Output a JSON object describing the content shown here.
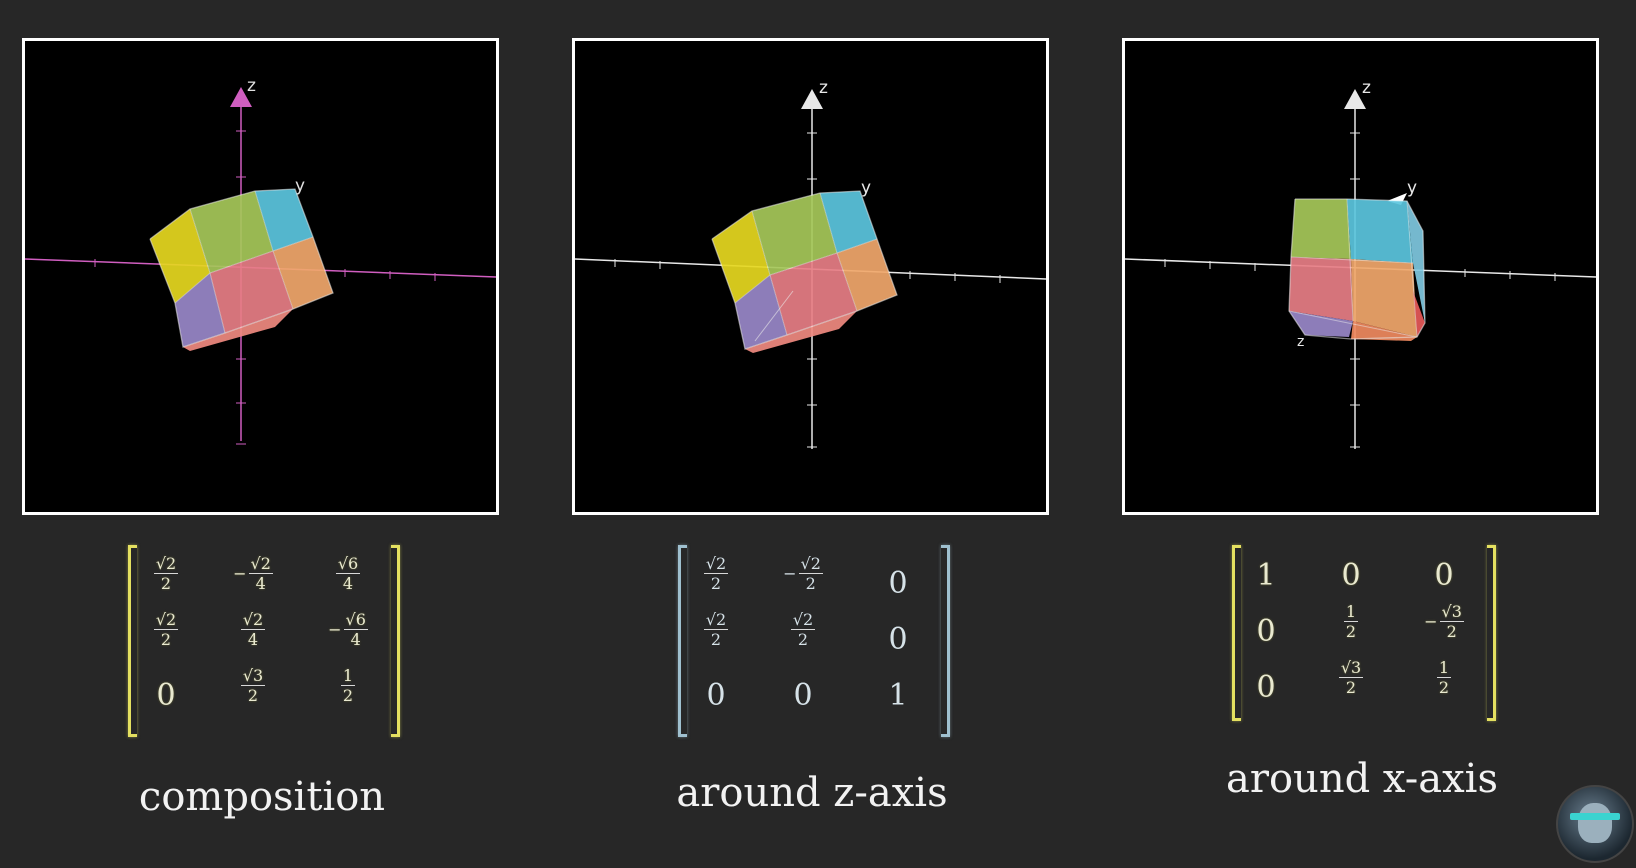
{
  "panels": [
    {
      "axis_color": "#d05ec0",
      "labels": {
        "z": "z",
        "y": "y"
      },
      "matrix": {
        "bracket_style": "yellow",
        "rows": [
          [
            {
              "sign": "",
              "num": "√2",
              "den": "2"
            },
            {
              "sign": "−",
              "num": "√2",
              "den": "4"
            },
            {
              "sign": "",
              "num": "√6",
              "den": "4"
            }
          ],
          [
            {
              "sign": "",
              "num": "√2",
              "den": "2"
            },
            {
              "sign": "",
              "num": "√2",
              "den": "4"
            },
            {
              "sign": "−",
              "num": "√6",
              "den": "4"
            }
          ],
          [
            {
              "value": "0"
            },
            {
              "sign": "",
              "num": "√3",
              "den": "2"
            },
            {
              "sign": "",
              "num": "1",
              "den": "2"
            }
          ]
        ]
      },
      "caption": "composition"
    },
    {
      "axis_color": "#e8e8e8",
      "labels": {
        "z": "z",
        "y": "y"
      },
      "matrix": {
        "bracket_style": "blue",
        "rows": [
          [
            {
              "sign": "",
              "num": "√2",
              "den": "2"
            },
            {
              "sign": "−",
              "num": "√2",
              "den": "2"
            },
            {
              "value": "0"
            }
          ],
          [
            {
              "sign": "",
              "num": "√2",
              "den": "2"
            },
            {
              "sign": "",
              "num": "√2",
              "den": "2"
            },
            {
              "value": "0"
            }
          ],
          [
            {
              "value": "0"
            },
            {
              "value": "0"
            },
            {
              "value": "1"
            }
          ]
        ]
      },
      "caption": "around z-axis"
    },
    {
      "axis_color": "#e8e8e8",
      "labels": {
        "z": "z",
        "y": "y"
      },
      "matrix": {
        "bracket_style": "yellow",
        "rows": [
          [
            {
              "value": "1"
            },
            {
              "value": "0"
            },
            {
              "value": "0"
            }
          ],
          [
            {
              "value": "0"
            },
            {
              "sign": "",
              "num": "1",
              "den": "2"
            },
            {
              "sign": "−",
              "num": "√3",
              "den": "2"
            }
          ],
          [
            {
              "value": "0"
            },
            {
              "sign": "",
              "num": "√3",
              "den": "2"
            },
            {
              "sign": "",
              "num": "1",
              "den": "2"
            }
          ]
        ]
      },
      "caption": "around x-axis"
    }
  ],
  "cube_colors": {
    "yellow": "#e6d820",
    "green": "#a6c85a",
    "lime": "#b6cf64",
    "cyan": "#5cc6df",
    "pink": "#e87e86",
    "orange": "#f1a86c",
    "purple": "#9a88c9"
  }
}
